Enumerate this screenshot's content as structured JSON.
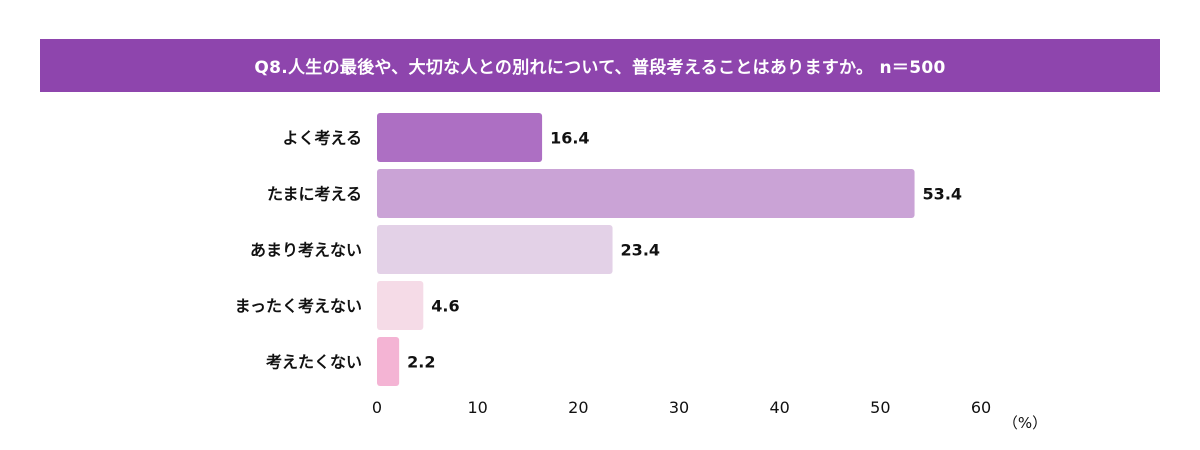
{
  "chart_data": {
    "type": "bar",
    "orientation": "horizontal",
    "title": "Q8.人生の最後や、大切な人との別れについて、普段考えることはありますか。 n＝500",
    "categories": [
      "よく考える",
      "たまに考える",
      "あまり考えない",
      "まったく考えない",
      "考えたくない"
    ],
    "values": [
      16.4,
      53.4,
      23.4,
      4.6,
      2.2
    ],
    "value_labels": [
      "16.4",
      "53.4",
      "23.4",
      "4.6",
      "2.2"
    ],
    "colors": [
      "#ad6fc3",
      "#caa3d6",
      "#e3d1e7",
      "#f5dbe7",
      "#f4b4d4"
    ],
    "xlim": [
      0,
      60
    ],
    "xticks": [
      "0",
      "10",
      "20",
      "30",
      "40",
      "50",
      "60"
    ],
    "xunit": "（%）",
    "grid": false,
    "title_bar_color": "#8e45ad"
  }
}
